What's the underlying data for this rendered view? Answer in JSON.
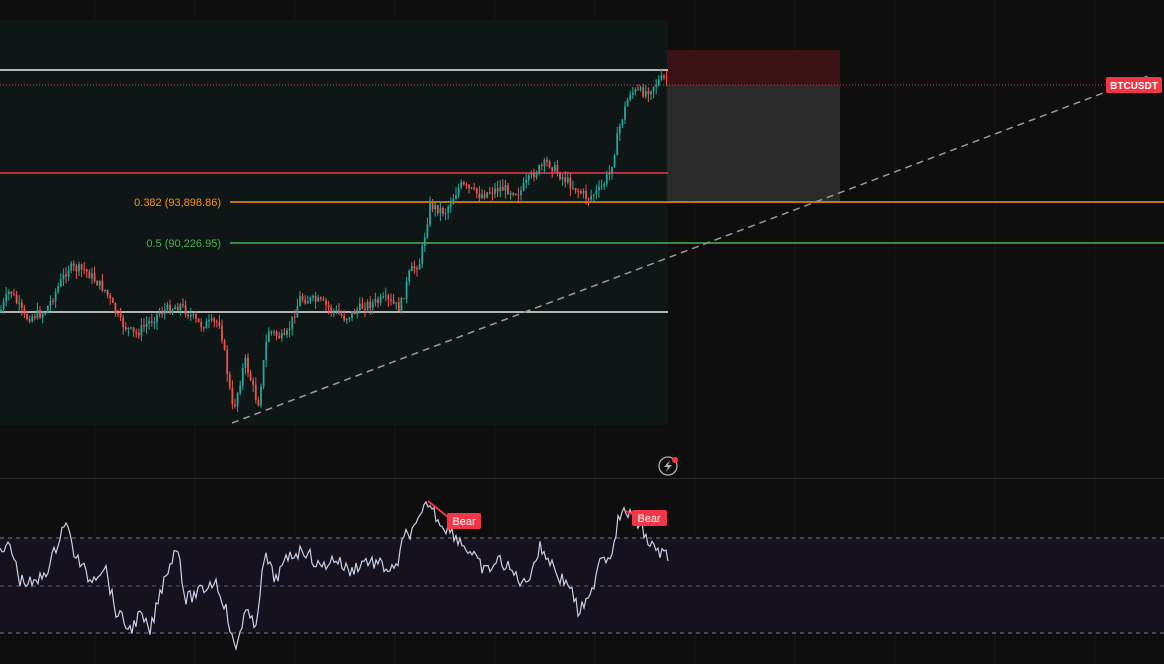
{
  "symbol_tag": "BTCUSDT",
  "fib_levels": [
    {
      "label": "0.382 (93,898.86)",
      "color": "#f7931a"
    },
    {
      "label": "0.5 (90,226.95)",
      "color": "#4caf50"
    }
  ],
  "divergence_labels": [
    "Bear",
    "Bear"
  ],
  "icons": {
    "alert": "lightning-alert-icon"
  },
  "colors": {
    "background": "#0e0e0e",
    "panel": "#0f1716",
    "bull": "#26a69a",
    "bear": "#ef5350",
    "resistance": "#f23645",
    "fib_382": "#f7931a",
    "fib_05": "#4caf50",
    "indicator_line": "#c8d0e8"
  }
}
